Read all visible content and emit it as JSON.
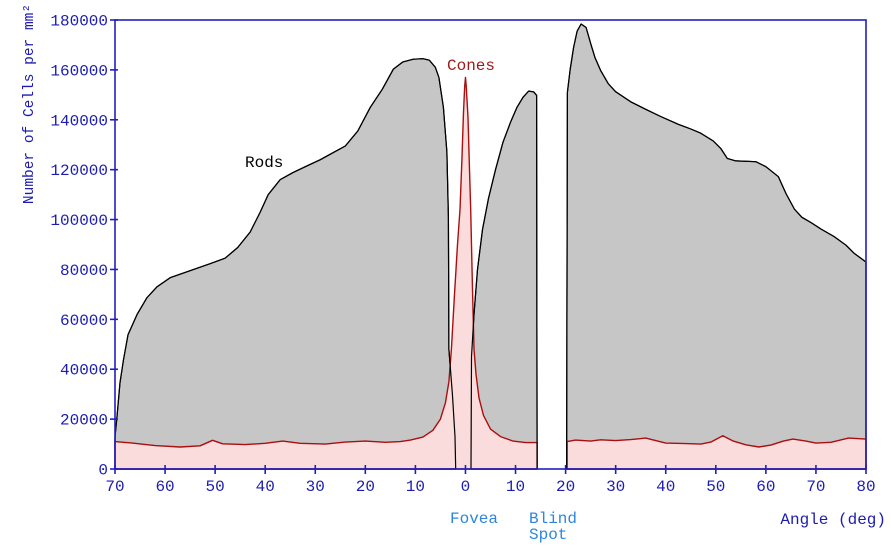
{
  "colors": {
    "axis_line": "#2020C0",
    "axis_text": "#1C1CB2",
    "landmark_text": "#2E86DC",
    "rods_fill": "#C6C6C6",
    "rods_stroke": "#000000",
    "rods_text": "#000000",
    "cones_fill": "#FBDCDC",
    "cones_stroke": "#AA0F0F",
    "cones_text": "#9E1A1A",
    "background": "#FFFFFF"
  },
  "chart_data": {
    "type": "area",
    "title": "",
    "xlabel": "Angle (deg)",
    "ylabel": "Number of Cells per mm²",
    "xlim": [
      -70,
      80
    ],
    "ylim": [
      0,
      180000
    ],
    "grid": false,
    "legend": "inline-annotations",
    "fovea_center_deg": 0,
    "blind_spot_range_deg": [
      14.3,
      20.2
    ],
    "x_ticks": [
      {
        "value": -70,
        "label": "70"
      },
      {
        "value": -60,
        "label": "60"
      },
      {
        "value": -50,
        "label": "50"
      },
      {
        "value": -40,
        "label": "40"
      },
      {
        "value": -30,
        "label": "30"
      },
      {
        "value": -20,
        "label": "20"
      },
      {
        "value": -10,
        "label": "10"
      },
      {
        "value": 0,
        "label": "0"
      },
      {
        "value": 10,
        "label": "10"
      },
      {
        "value": 20,
        "label": "20"
      },
      {
        "value": 30,
        "label": "30"
      },
      {
        "value": 40,
        "label": "40"
      },
      {
        "value": 50,
        "label": "50"
      },
      {
        "value": 60,
        "label": "60"
      },
      {
        "value": 70,
        "label": "70"
      },
      {
        "value": 80,
        "label": "80"
      }
    ],
    "y_ticks": [
      {
        "value": 0,
        "label": "0"
      },
      {
        "value": 20000,
        "label": "20000"
      },
      {
        "value": 40000,
        "label": "40000"
      },
      {
        "value": 60000,
        "label": "60000"
      },
      {
        "value": 80000,
        "label": "80000"
      },
      {
        "value": 100000,
        "label": "100000"
      },
      {
        "value": 120000,
        "label": "120000"
      },
      {
        "value": 140000,
        "label": "140000"
      },
      {
        "value": 160000,
        "label": "160000"
      },
      {
        "value": 180000,
        "label": "180000"
      }
    ],
    "series": [
      {
        "name": "Rods",
        "fill_role": "rods_fill",
        "stroke_role": "rods_stroke",
        "segments": [
          [
            [
              -70,
              12900
            ],
            [
              -69.6,
              21000
            ],
            [
              -69,
              34600
            ],
            [
              -68.3,
              43800
            ],
            [
              -67.4,
              53800
            ],
            [
              -65.6,
              61900
            ],
            [
              -63.6,
              68700
            ],
            [
              -61.6,
              73100
            ],
            [
              -59,
              76700
            ],
            [
              -56,
              78800
            ],
            [
              -54,
              80200
            ],
            [
              -51,
              82300
            ],
            [
              -48,
              84500
            ],
            [
              -45.5,
              88800
            ],
            [
              -43,
              95000
            ],
            [
              -41,
              103000
            ],
            [
              -39.4,
              110000
            ],
            [
              -37,
              116000
            ],
            [
              -34.5,
              118800
            ],
            [
              -32,
              121200
            ],
            [
              -29,
              124000
            ],
            [
              -27,
              126200
            ],
            [
              -24,
              129500
            ],
            [
              -21.5,
              135500
            ],
            [
              -19,
              145000
            ],
            [
              -16.6,
              152300
            ],
            [
              -14.4,
              160300
            ],
            [
              -12.5,
              163200
            ],
            [
              -10.4,
              164300
            ],
            [
              -8.5,
              164500
            ],
            [
              -7.2,
              163900
            ],
            [
              -6,
              161000
            ],
            [
              -5.3,
              157000
            ],
            [
              -4.4,
              145000
            ],
            [
              -3.7,
              127000
            ],
            [
              -3.4,
              101000
            ],
            [
              -3.3,
              48000
            ],
            [
              -2.6,
              30000
            ],
            [
              -2.1,
              13000
            ],
            [
              -1.95,
              0
            ]
          ],
          [
            [
              1.1,
              0
            ],
            [
              1.2,
              45000
            ],
            [
              1.7,
              62000
            ],
            [
              2.4,
              80000
            ],
            [
              3.4,
              96000
            ],
            [
              4.6,
              108500
            ],
            [
              6,
              120000
            ],
            [
              7.5,
              131000
            ],
            [
              9,
              139000
            ],
            [
              10.3,
              145000
            ],
            [
              11.5,
              149000
            ],
            [
              12.6,
              151500
            ],
            [
              13.6,
              151200
            ],
            [
              14.2,
              149800
            ],
            [
              14.3,
              0
            ]
          ],
          [
            [
              20.2,
              0
            ],
            [
              20.35,
              151000
            ],
            [
              20.9,
              160000
            ],
            [
              21.6,
              169000
            ],
            [
              22.3,
              175500
            ],
            [
              23.1,
              178400
            ],
            [
              24.1,
              177000
            ],
            [
              25.1,
              170000
            ],
            [
              25.9,
              164800
            ],
            [
              27,
              159800
            ],
            [
              28.5,
              154500
            ],
            [
              30,
              151200
            ],
            [
              33,
              147200
            ],
            [
              36,
              144200
            ],
            [
              39,
              141300
            ],
            [
              42.5,
              138200
            ],
            [
              45,
              136300
            ],
            [
              47,
              134600
            ],
            [
              49.5,
              131500
            ],
            [
              51,
              128500
            ],
            [
              52.3,
              124500
            ],
            [
              54,
              123500
            ],
            [
              58,
              123200
            ],
            [
              60,
              121200
            ],
            [
              62.5,
              117200
            ],
            [
              64,
              110500
            ],
            [
              65.7,
              104200
            ],
            [
              67.2,
              100900
            ],
            [
              69,
              98800
            ],
            [
              71,
              96200
            ],
            [
              73.6,
              93200
            ],
            [
              76,
              89700
            ],
            [
              77.6,
              86500
            ],
            [
              80,
              83000
            ]
          ]
        ]
      },
      {
        "name": "Cones",
        "fill_role": "cones_fill",
        "stroke_role": "cones_stroke",
        "segments": [
          [
            [
              -70,
              11000
            ],
            [
              -67,
              10500
            ],
            [
              -62,
              9400
            ],
            [
              -57,
              8800
            ],
            [
              -53,
              9300
            ],
            [
              -50.5,
              11500
            ],
            [
              -48.5,
              10100
            ],
            [
              -44,
              9800
            ],
            [
              -40,
              10300
            ],
            [
              -36.5,
              11200
            ],
            [
              -33,
              10300
            ],
            [
              -28,
              10000
            ],
            [
              -24,
              10800
            ],
            [
              -20,
              11200
            ],
            [
              -16,
              10700
            ],
            [
              -13,
              11000
            ],
            [
              -11,
              11600
            ],
            [
              -8.5,
              12800
            ],
            [
              -6.5,
              15500
            ],
            [
              -5,
              20000
            ],
            [
              -4,
              26500
            ],
            [
              -3.3,
              35000
            ],
            [
              -2.8,
              48000
            ],
            [
              -2.2,
              70000
            ],
            [
              -1.6,
              90000
            ],
            [
              -1.1,
              104000
            ],
            [
              -0.7,
              125000
            ],
            [
              -0.4,
              143000
            ],
            [
              -0.15,
              153500
            ],
            [
              0,
              157000
            ],
            [
              0.15,
              153500
            ],
            [
              0.5,
              141000
            ],
            [
              0.8,
              120000
            ],
            [
              1.05,
              104000
            ],
            [
              1.4,
              72000
            ],
            [
              1.7,
              48000
            ],
            [
              2.1,
              38000
            ],
            [
              2.7,
              28500
            ],
            [
              3.6,
              21500
            ],
            [
              5,
              16000
            ],
            [
              7,
              13000
            ],
            [
              9.5,
              11200
            ],
            [
              12,
              10600
            ],
            [
              14.3,
              10600
            ]
          ],
          [
            [
              20.3,
              11000
            ],
            [
              22,
              11600
            ],
            [
              25,
              11200
            ],
            [
              27,
              11700
            ],
            [
              30,
              11400
            ],
            [
              33,
              11800
            ],
            [
              36,
              12400
            ],
            [
              38,
              11400
            ],
            [
              40,
              10400
            ],
            [
              44,
              10200
            ],
            [
              47,
              10000
            ],
            [
              49,
              10800
            ],
            [
              51.4,
              13300
            ],
            [
              53.5,
              11200
            ],
            [
              56,
              9700
            ],
            [
              58.6,
              8800
            ],
            [
              61,
              9600
            ],
            [
              63.5,
              11200
            ],
            [
              65.4,
              12000
            ],
            [
              68,
              11200
            ],
            [
              70,
              10400
            ],
            [
              73,
              10700
            ],
            [
              76.5,
              12400
            ],
            [
              80,
              12000
            ]
          ]
        ]
      }
    ],
    "annotations": {
      "rods": {
        "text": "Rods"
      },
      "cones": {
        "text": "Cones"
      },
      "fovea": {
        "text": "Fovea"
      },
      "blind_spot": {
        "line1": "Blind",
        "line2": "Spot"
      },
      "peak_cones_at_fovea": 157000,
      "peak_rods_left_deg_value": [
        -9,
        164500
      ],
      "peak_rods_right_deg_value": [
        23,
        178400
      ]
    }
  }
}
